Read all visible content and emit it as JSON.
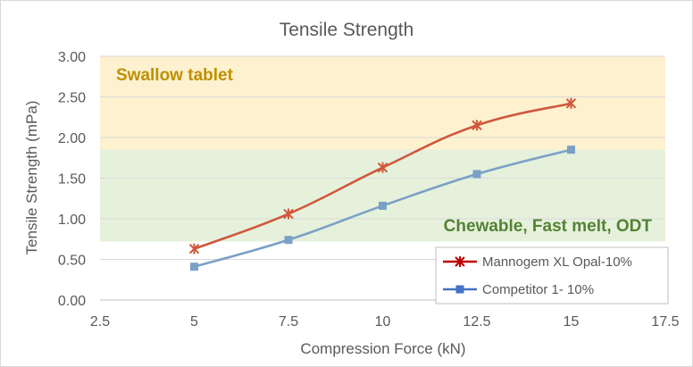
{
  "chart_data": {
    "type": "line",
    "title": "Tensile Strength",
    "xlabel": "Compression Force (kN)",
    "ylabel": "Tensile Strength (mPa)",
    "xlim": [
      2.5,
      17.5
    ],
    "ylim": [
      0,
      3
    ],
    "x_ticks": [
      2.5,
      5,
      7.5,
      10,
      12.5,
      15,
      17.5
    ],
    "x_tick_labels": [
      "2.5",
      "5",
      "7.5",
      "10",
      "12.5",
      "15",
      "17.5"
    ],
    "y_ticks": [
      0,
      0.5,
      1,
      1.5,
      2,
      2.5,
      3
    ],
    "y_tick_labels": [
      "0.00",
      "0.50",
      "1.00",
      "1.50",
      "2.00",
      "2.50",
      "3.00"
    ],
    "grid": "horizontal",
    "legend_position": "bottom-right",
    "bands": [
      {
        "label": "Swallow tablet",
        "y_from": 1.85,
        "y_to": 3.0,
        "fill": "#fdf1cf",
        "text_color": "#bf9000",
        "label_align": "left"
      },
      {
        "label": "Chewable, Fast melt, ODT",
        "y_from": 0.72,
        "y_to": 1.85,
        "fill": "#e6f1dc",
        "text_color": "#548235",
        "label_align": "right"
      }
    ],
    "series": [
      {
        "name": "Mannogem XL Opal-10%",
        "color": "#d0573c",
        "legend_color": "#c00000",
        "marker": "asterisk",
        "x": [
          5,
          7.5,
          10,
          12.5,
          15
        ],
        "y": [
          0.63,
          1.06,
          1.63,
          2.15,
          2.42
        ]
      },
      {
        "name": "Competitor 1- 10%",
        "color": "#7ba0c6",
        "legend_color": "#4472c4",
        "marker": "square",
        "x": [
          5,
          7.5,
          10,
          12.5,
          15
        ],
        "y": [
          0.41,
          0.74,
          1.16,
          1.55,
          1.85
        ]
      }
    ]
  }
}
